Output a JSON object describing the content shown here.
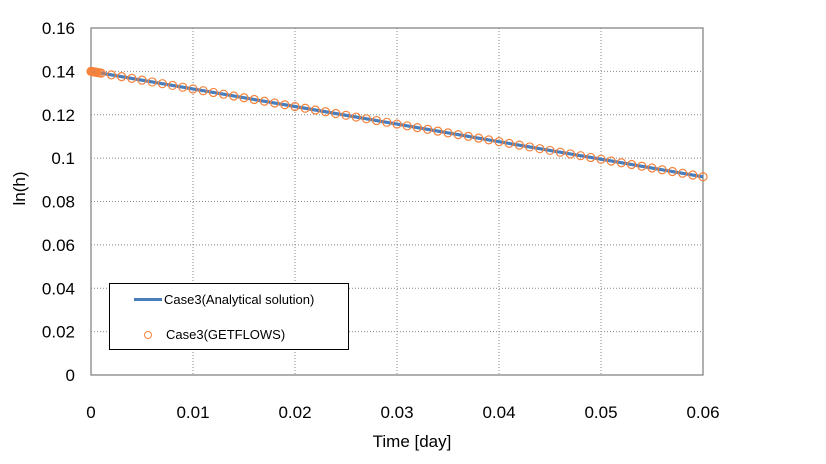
{
  "chart_data": {
    "type": "line",
    "title": "",
    "xlabel": "Time [day]",
    "ylabel": "ln(h)",
    "xlim": [
      0,
      0.06
    ],
    "ylim": [
      0,
      0.16
    ],
    "xticks": [
      "0",
      "0.01",
      "0.02",
      "0.03",
      "0.04",
      "0.05",
      "0.06"
    ],
    "yticks": [
      "0",
      "0.02",
      "0.04",
      "0.06",
      "0.08",
      "0.1",
      "0.12",
      "0.14",
      "0.16"
    ],
    "grid": true,
    "legend_position": "lower left (inside)",
    "series": [
      {
        "name": "Case3(Analytical solution)",
        "style": "line",
        "color": "#4a7ebb",
        "x": [
          0,
          0.01,
          0.02,
          0.03,
          0.04,
          0.05,
          0.06
        ],
        "values": [
          0.14,
          0.1319,
          0.1238,
          0.1157,
          0.1076,
          0.0995,
          0.0914
        ]
      },
      {
        "name": "Case3(GETFLOWS)",
        "style": "open-circle markers",
        "color": "#f7823b",
        "x_start": 0,
        "x_end": 0.06,
        "x_step": 0.001,
        "values_start": 0.14,
        "values_end": 0.0914,
        "note": "markers densely clustered near t=0, then every 0.001 day along the analytical line"
      }
    ]
  },
  "legend": {
    "items": [
      {
        "label": "Case3(Analytical solution)"
      },
      {
        "label": "Case3(GETFLOWS)"
      }
    ]
  }
}
